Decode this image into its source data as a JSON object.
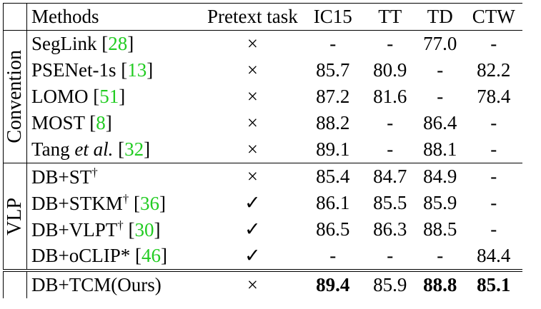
{
  "header": [
    "Methods",
    "Pretext task",
    "IC15",
    "TT",
    "TD",
    "CTW"
  ],
  "groups": [
    {
      "label": "Convention",
      "rows": [
        {
          "method": [
            {
              "text": "SegLink ["
            },
            {
              "text": "28",
              "style": "ref"
            },
            {
              "text": "]"
            }
          ],
          "cells": [
            "×",
            "-",
            "-",
            "77.0",
            "-"
          ]
        },
        {
          "method": [
            {
              "text": "PSENet-1s ["
            },
            {
              "text": "13",
              "style": "ref"
            },
            {
              "text": "]"
            }
          ],
          "cells": [
            "×",
            "85.7",
            "80.9",
            "-",
            "82.2"
          ]
        },
        {
          "method": [
            {
              "text": "LOMO ["
            },
            {
              "text": "51",
              "style": "ref"
            },
            {
              "text": "]"
            }
          ],
          "cells": [
            "×",
            "87.2",
            "81.6",
            "-",
            "78.4"
          ]
        },
        {
          "method": [
            {
              "text": "MOST ["
            },
            {
              "text": "8",
              "style": "ref"
            },
            {
              "text": "]"
            }
          ],
          "cells": [
            "×",
            "88.2",
            "-",
            "86.4",
            "-"
          ]
        },
        {
          "method": [
            {
              "text": "Tang "
            },
            {
              "text": "et al.",
              "style": "italic"
            },
            {
              "text": " ["
            },
            {
              "text": "32",
              "style": "ref"
            },
            {
              "text": "]"
            }
          ],
          "cells": [
            "×",
            "89.1",
            "-",
            "88.1",
            "-"
          ]
        }
      ]
    },
    {
      "label": "VLP",
      "rows": [
        {
          "method": [
            {
              "text": "DB+ST"
            },
            {
              "text": "†",
              "style": "sup"
            }
          ],
          "cells": [
            "×",
            "85.4",
            "84.7",
            "84.9",
            "-"
          ]
        },
        {
          "method": [
            {
              "text": "DB+STKM"
            },
            {
              "text": "†",
              "style": "sup"
            },
            {
              "text": " ["
            },
            {
              "text": "36",
              "style": "ref"
            },
            {
              "text": "]"
            }
          ],
          "cells": [
            "✓",
            "86.1",
            "85.5",
            "85.9",
            "-"
          ]
        },
        {
          "method": [
            {
              "text": "DB+VLPT"
            },
            {
              "text": "†",
              "style": "sup"
            },
            {
              "text": " ["
            },
            {
              "text": "30",
              "style": "ref"
            },
            {
              "text": "]"
            }
          ],
          "cells": [
            "✓",
            "86.5",
            "86.3",
            "88.5",
            "-"
          ]
        },
        {
          "method": [
            {
              "text": "DB+oCLIP* ["
            },
            {
              "text": "46",
              "style": "ref"
            },
            {
              "text": "]"
            }
          ],
          "cells": [
            "✓",
            "-",
            "-",
            "-",
            "84.4"
          ]
        }
      ]
    },
    {
      "rows": [
        {
          "method": [
            {
              "text": "DB+TCM(Ours)"
            }
          ],
          "cells": [
            "×",
            "89.4",
            "85.9",
            "88.8",
            "85.1"
          ],
          "bold": [
            1,
            3,
            4
          ]
        }
      ]
    }
  ]
}
